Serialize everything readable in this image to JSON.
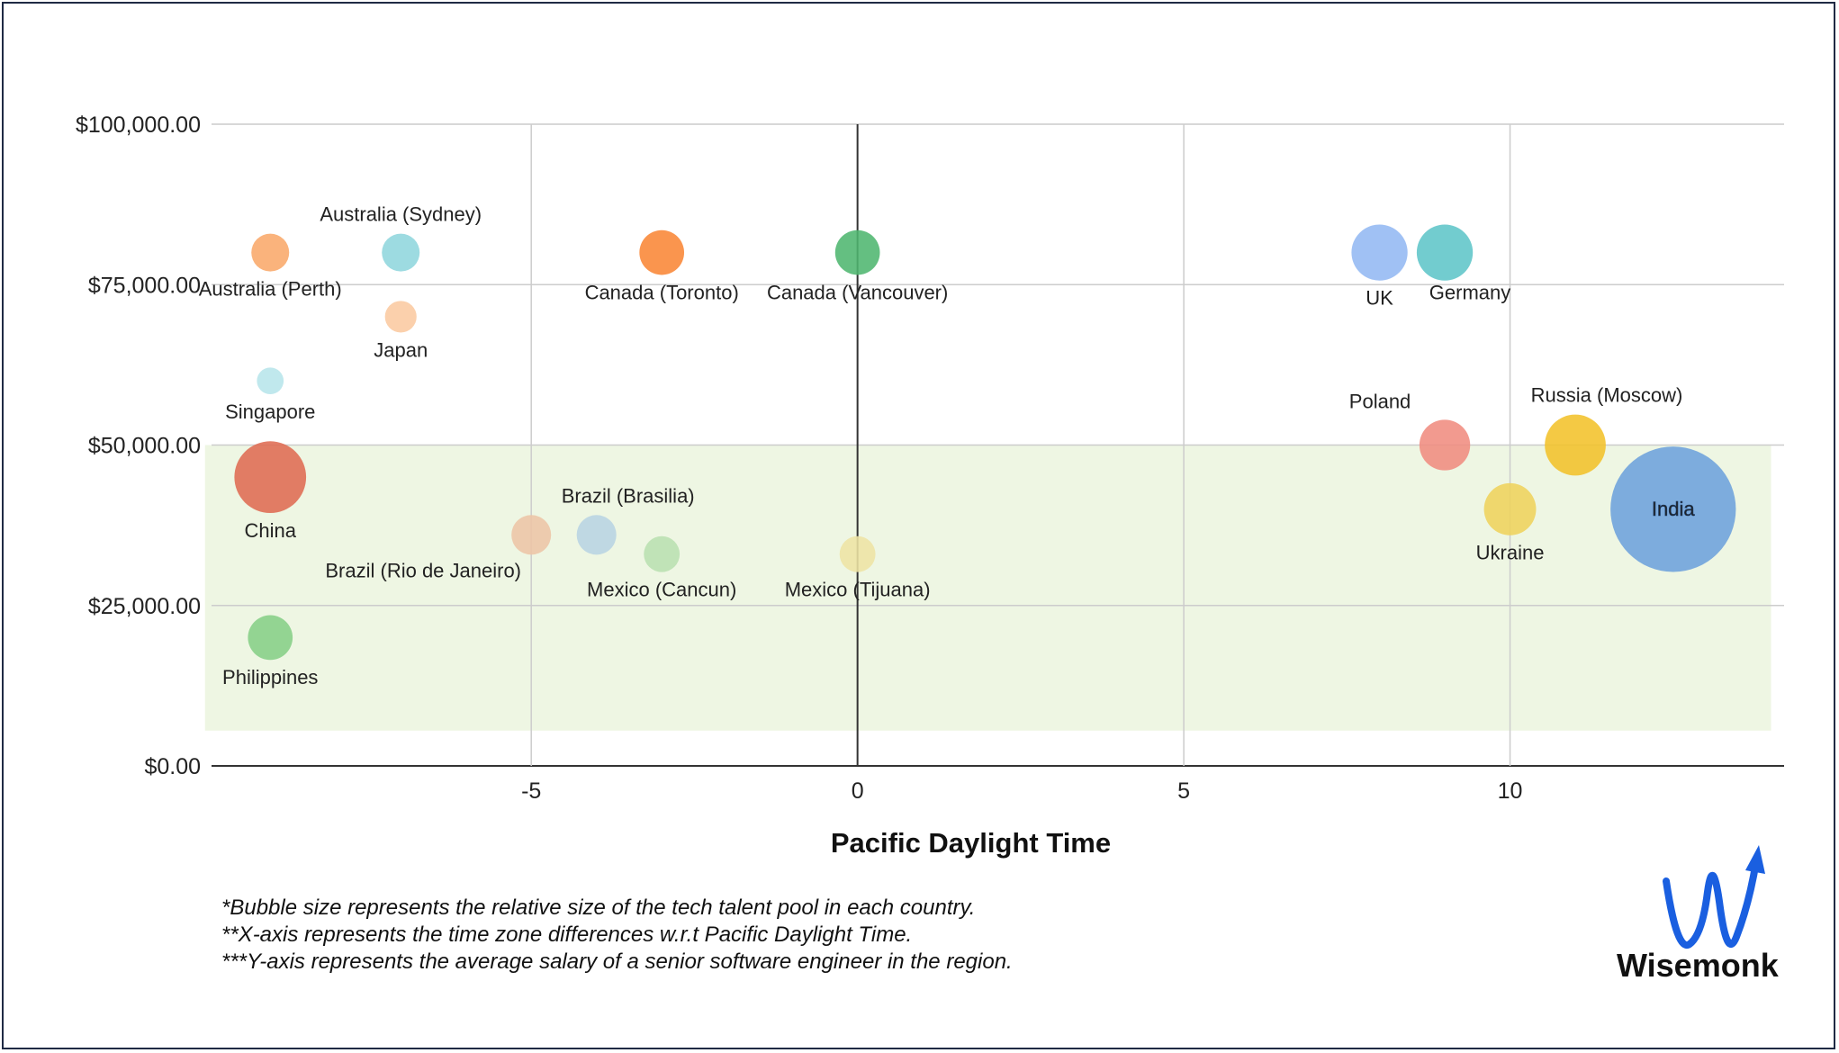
{
  "chart_data": {
    "type": "scatter",
    "subtype": "bubble",
    "xlabel": "Pacific Daylight Time",
    "ylabel": "",
    "xlim": [
      -9.9,
      14.2
    ],
    "ylim": [
      0,
      100000
    ],
    "x_ticks": [
      {
        "value": -5,
        "label": "-5"
      },
      {
        "value": 0,
        "label": "0"
      },
      {
        "value": 5,
        "label": "5"
      },
      {
        "value": 10,
        "label": "10"
      }
    ],
    "y_ticks": [
      {
        "value": 0,
        "label": "$0.00"
      },
      {
        "value": 25000,
        "label": "$25,000.00"
      },
      {
        "value": 50000,
        "label": "$50,000.00"
      },
      {
        "value": 75000,
        "label": "$75,000.00"
      },
      {
        "value": 100000,
        "label": "$100,000.00"
      }
    ],
    "grid": true,
    "shaded_region": {
      "x": [
        -10,
        14
      ],
      "y": [
        5500,
        50000
      ],
      "color": "#eef6e3"
    },
    "points": [
      {
        "name": "Australia (Perth)",
        "x": -9,
        "y": 80000,
        "size": 1.0,
        "color": "#f9a86a",
        "label_pos": "below"
      },
      {
        "name": "Australia (Sydney)",
        "x": -7,
        "y": 80000,
        "size": 1.0,
        "color": "#8fd6dd",
        "label_pos": "above"
      },
      {
        "name": "Japan",
        "x": -7,
        "y": 70000,
        "size": 0.7,
        "color": "#fbc9a0",
        "label_pos": "below"
      },
      {
        "name": "Singapore",
        "x": -9,
        "y": 60000,
        "size": 0.5,
        "color": "#b7e5ea",
        "label_pos": "below"
      },
      {
        "name": "China",
        "x": -9,
        "y": 45000,
        "size": 3.6,
        "color": "#df6b52",
        "label_pos": "below"
      },
      {
        "name": "Philippines",
        "x": -9,
        "y": 20000,
        "size": 1.4,
        "color": "#86cf86",
        "label_pos": "below"
      },
      {
        "name": "Canada (Toronto)",
        "x": -3,
        "y": 80000,
        "size": 1.4,
        "color": "#f98635",
        "label_pos": "below"
      },
      {
        "name": "Canada (Vancouver)",
        "x": 0,
        "y": 80000,
        "size": 1.4,
        "color": "#4fb66f",
        "label_pos": "below"
      },
      {
        "name": "Brazil (Rio de Janeiro)",
        "x": -5,
        "y": 36000,
        "size": 1.1,
        "color": "#edc5a6",
        "label_pos": "below-left"
      },
      {
        "name": "Brazil (Brasilia)",
        "x": -4,
        "y": 36000,
        "size": 1.1,
        "color": "#b8d4e2",
        "label_pos": "above-right"
      },
      {
        "name": "Mexico (Cancun)",
        "x": -3,
        "y": 33000,
        "size": 0.9,
        "color": "#b9e0b0",
        "label_pos": "below"
      },
      {
        "name": "Mexico (Tijuana)",
        "x": 0,
        "y": 33000,
        "size": 0.9,
        "color": "#eee4a4",
        "label_pos": "below"
      },
      {
        "name": "UK",
        "x": 8,
        "y": 80000,
        "size": 2.2,
        "color": "#93b8f3",
        "label_pos": "below"
      },
      {
        "name": "Germany",
        "x": 9,
        "y": 80000,
        "size": 2.2,
        "color": "#5fc5c8",
        "label_pos": "below-right"
      },
      {
        "name": "Poland",
        "x": 9,
        "y": 50000,
        "size": 1.8,
        "color": "#f08c80",
        "label_pos": "above-left"
      },
      {
        "name": "Russia (Moscow)",
        "x": 11,
        "y": 50000,
        "size": 2.6,
        "color": "#f3c22a",
        "label_pos": "above-right"
      },
      {
        "name": "Ukraine",
        "x": 10,
        "y": 40000,
        "size": 1.9,
        "color": "#efd35c",
        "label_pos": "below"
      },
      {
        "name": "India",
        "x": 12.5,
        "y": 40000,
        "size": 11.0,
        "color": "#6da2dc",
        "label_pos": "center"
      }
    ]
  },
  "notes": [
    "*Bubble size represents the relative size of the tech talent pool in each country.",
    "**X-axis represents the time zone differences w.r.t Pacific Daylight Time.",
    "***Y-axis represents the average salary of a senior software engineer in the region."
  ],
  "logo": {
    "text": "Wisemonk",
    "color": "#1a5fe0"
  }
}
